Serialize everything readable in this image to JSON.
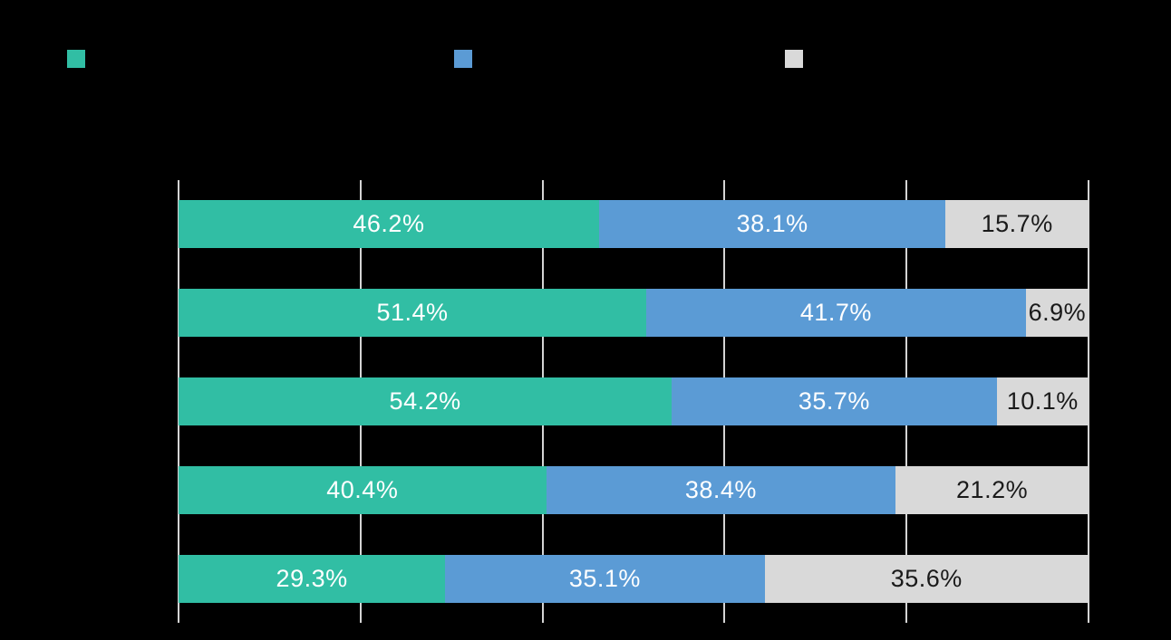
{
  "chart_data": {
    "type": "bar",
    "orientation": "horizontal",
    "stacked": true,
    "background_color": "#000000",
    "title": "",
    "xlabel": "",
    "ylabel": "",
    "xlim": [
      0,
      100
    ],
    "gridlines_percent": [
      0,
      20,
      40,
      60,
      80,
      100
    ],
    "grid_color": "#d4d4d4",
    "categories": [
      "",
      "",
      "",
      "",
      ""
    ],
    "series": [
      {
        "name": "series-1-teal",
        "color": "#31bea4",
        "label_color": "#ffffff",
        "values": [
          46.2,
          51.4,
          54.2,
          40.4,
          29.3
        ]
      },
      {
        "name": "series-2-blue",
        "color": "#5b9bd5",
        "label_color": "#ffffff",
        "values": [
          38.1,
          41.7,
          35.7,
          38.4,
          35.1
        ]
      },
      {
        "name": "series-3-gray",
        "color": "#d9d9d9",
        "label_color": "#1a1a1a",
        "values": [
          15.7,
          6.9,
          10.1,
          21.2,
          35.6
        ]
      }
    ],
    "value_labels": [
      [
        "46.2%",
        "38.1%",
        "15.7%"
      ],
      [
        "51.4%",
        "41.7%",
        "6.9%"
      ],
      [
        "54.2%",
        "35.7%",
        "10.1%"
      ],
      [
        "40.4%",
        "38.4%",
        "21.2%"
      ],
      [
        "29.3%",
        "35.1%",
        "35.6%"
      ]
    ],
    "legend": {
      "position": "top",
      "swatch_colors": [
        "#31bea4",
        "#5b9bd5",
        "#d9d9d9"
      ],
      "labels": [
        "",
        "",
        ""
      ]
    }
  }
}
